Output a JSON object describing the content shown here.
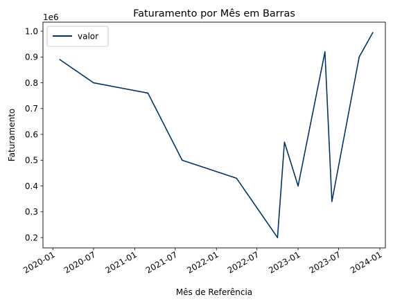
{
  "chart_data": {
    "type": "line",
    "title": "Faturamento por Mês em Barras",
    "xlabel": "Mês de Referência",
    "ylabel": "Faturamento",
    "y_offset_label": "1e6",
    "grid": false,
    "legend_position": "top-left",
    "series": [
      {
        "name": "valor",
        "color": "#003366",
        "points": [
          {
            "x": "2020-02-01",
            "y": 890000
          },
          {
            "x": "2020-07-01",
            "y": 800000
          },
          {
            "x": "2021-03-01",
            "y": 760000
          },
          {
            "x": "2021-08-01",
            "y": 500000
          },
          {
            "x": "2022-04-01",
            "y": 430000
          },
          {
            "x": "2022-10-01",
            "y": 200000
          },
          {
            "x": "2022-11-01",
            "y": 570000
          },
          {
            "x": "2023-01-01",
            "y": 400000
          },
          {
            "x": "2023-05-01",
            "y": 920000
          },
          {
            "x": "2023-06-01",
            "y": 340000
          },
          {
            "x": "2023-10-01",
            "y": 900000
          },
          {
            "x": "2023-12-01",
            "y": 995000
          }
        ]
      }
    ],
    "x_ticks": [
      "2020-01",
      "2020-07",
      "2021-01",
      "2021-07",
      "2022-01",
      "2022-07",
      "2023-01",
      "2023-07",
      "2024-01"
    ],
    "y_ticks": [
      0.2,
      0.3,
      0.4,
      0.5,
      0.6,
      0.7,
      0.8,
      0.9,
      1.0
    ],
    "y_tick_labels": [
      "0.2",
      "0.3",
      "0.4",
      "0.5",
      "0.6",
      "0.7",
      "0.8",
      "0.9",
      "1.0"
    ],
    "ylim": [
      160000,
      1035000
    ],
    "xlim": [
      "2019-11-18",
      "2024-01-26"
    ]
  }
}
